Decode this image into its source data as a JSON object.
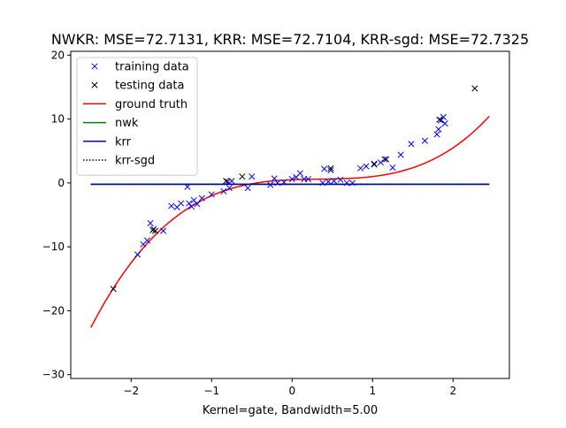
{
  "chart_data": {
    "type": "line",
    "title": "NWKR: MSE=72.7131, KRR: MSE=72.7104, KRR-sgd: MSE=72.7325",
    "xlabel": "Kernel=gate, Bandwidth=5.00",
    "ylabel": "",
    "xlim": [
      -2.75,
      2.7
    ],
    "ylim": [
      -30.6,
      20.6
    ],
    "xticks": [
      -2,
      -1,
      0,
      1,
      2
    ],
    "xtick_labels": [
      "−2",
      "−1",
      "0",
      "1",
      "2"
    ],
    "yticks": [
      -30,
      -20,
      -10,
      0,
      10,
      20
    ],
    "ytick_labels": [
      "−30",
      "−20",
      "−10",
      "0",
      "10",
      "20"
    ],
    "grid": false,
    "legend_position": "top-left",
    "legend": [
      {
        "label": "training data",
        "color": "#0000ff",
        "style": "x-marker"
      },
      {
        "label": "testing data",
        "color": "#000000",
        "style": "x-marker"
      },
      {
        "label": "ground truth",
        "color": "#ff0000",
        "style": "solid"
      },
      {
        "label": "nwk",
        "color": "#008000",
        "style": "solid"
      },
      {
        "label": "krr",
        "color": "#0000ff",
        "style": "solid"
      },
      {
        "label": "krr-sgd",
        "color": "#000000",
        "style": "dotted"
      }
    ],
    "series": [
      {
        "name": "ground truth",
        "kind": "function",
        "formula": "x^3 - x^2 + 0.5*x + 0.5",
        "x_range": [
          -2.5,
          2.45
        ],
        "color": "#ff0000"
      },
      {
        "name": "nwk",
        "kind": "constant",
        "y": -0.2,
        "x_range": [
          -2.5,
          2.45
        ],
        "color": "#008000"
      },
      {
        "name": "krr",
        "kind": "constant",
        "y": -0.2,
        "x_range": [
          -2.5,
          2.45
        ],
        "color": "#0000ff"
      },
      {
        "name": "krr-sgd",
        "kind": "constant",
        "y": -0.2,
        "x_range": [
          -2.5,
          2.45
        ],
        "color": "#000000"
      },
      {
        "name": "training data",
        "kind": "scatter",
        "color": "#0000ff",
        "points": [
          [
            -1.92,
            -11.2
          ],
          [
            -1.85,
            -9.6
          ],
          [
            -1.8,
            -9.0
          ],
          [
            -1.76,
            -6.3
          ],
          [
            -1.72,
            -7.2
          ],
          [
            -1.6,
            -7.5
          ],
          [
            -1.5,
            -3.6
          ],
          [
            -1.43,
            -3.8
          ],
          [
            -1.38,
            -3.2
          ],
          [
            -1.3,
            -0.6
          ],
          [
            -1.28,
            -3.2
          ],
          [
            -1.25,
            -3.7
          ],
          [
            -1.22,
            -2.7
          ],
          [
            -1.18,
            -3.3
          ],
          [
            -1.12,
            -2.4
          ],
          [
            -1.0,
            -1.8
          ],
          [
            -0.85,
            -1.3
          ],
          [
            -0.8,
            0.2
          ],
          [
            -0.78,
            -0.8
          ],
          [
            -0.75,
            0.3
          ],
          [
            -0.55,
            -0.8
          ],
          [
            -0.5,
            1.0
          ],
          [
            -0.27,
            -0.3
          ],
          [
            -0.22,
            0.7
          ],
          [
            -0.18,
            0.0
          ],
          [
            -0.1,
            0.1
          ],
          [
            0.0,
            0.6
          ],
          [
            0.05,
            0.9
          ],
          [
            0.1,
            1.5
          ],
          [
            0.15,
            0.6
          ],
          [
            0.2,
            0.6
          ],
          [
            0.38,
            0.0
          ],
          [
            0.4,
            2.2
          ],
          [
            0.45,
            0.2
          ],
          [
            0.48,
            2.0
          ],
          [
            0.52,
            0.3
          ],
          [
            0.6,
            0.5
          ],
          [
            0.68,
            0.0
          ],
          [
            0.75,
            0.0
          ],
          [
            0.85,
            2.3
          ],
          [
            0.92,
            2.6
          ],
          [
            1.02,
            3.0
          ],
          [
            1.1,
            3.2
          ],
          [
            1.15,
            3.7
          ],
          [
            1.25,
            2.4
          ],
          [
            1.35,
            4.4
          ],
          [
            1.48,
            6.1
          ],
          [
            1.65,
            6.6
          ],
          [
            1.8,
            7.6
          ],
          [
            1.82,
            8.4
          ],
          [
            1.85,
            9.8
          ],
          [
            1.88,
            10.3
          ],
          [
            1.9,
            9.3
          ]
        ]
      },
      {
        "name": "testing data",
        "kind": "scatter",
        "color": "#000000",
        "points": [
          [
            -2.22,
            -16.6
          ],
          [
            -1.73,
            -7.4
          ],
          [
            -1.7,
            -7.5
          ],
          [
            -0.82,
            0.3
          ],
          [
            -0.62,
            1.0
          ],
          [
            0.48,
            2.3
          ],
          [
            1.02,
            2.9
          ],
          [
            1.17,
            3.7
          ],
          [
            1.83,
            9.9
          ],
          [
            2.27,
            14.8
          ]
        ]
      }
    ]
  }
}
